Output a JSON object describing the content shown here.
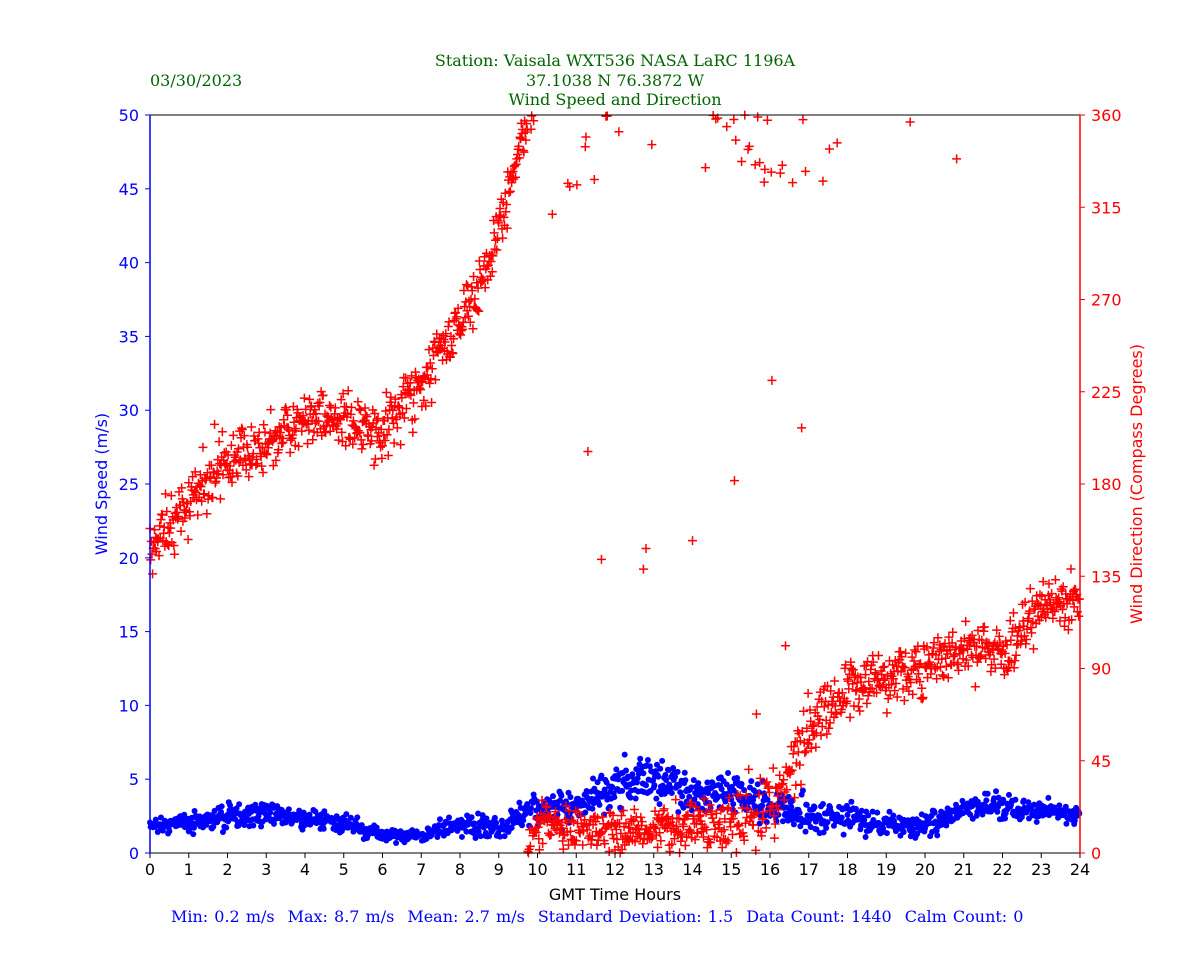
{
  "header": {
    "station": "Station:  Vaisala WXT536  NASA LaRC 1196A",
    "coords": "37.1038 N 76.3872 W",
    "subtitle": "Wind Speed and Direction",
    "date": "03/30/2023"
  },
  "stats": [
    "Min: 0.2 m/s",
    "Max: 8.7 m/s",
    "Mean: 2.7 m/s",
    "Standard Deviation: 1.5",
    "Data Count: 1440",
    "Calm Count:  0"
  ],
  "chart_data": {
    "type": "scatter",
    "title": "Wind Speed and Direction",
    "xlabel": "GMT Time Hours",
    "ylabel": "Wind Speed (m/s)",
    "y2label": "Wind Direction (Compass Degrees)",
    "xlim": [
      0,
      24
    ],
    "ylim": [
      0,
      50
    ],
    "y2lim": [
      0,
      360
    ],
    "xticks": [
      "0",
      "1",
      "2",
      "3",
      "4",
      "5",
      "6",
      "7",
      "8",
      "9",
      "10",
      "11",
      "12",
      "13",
      "14",
      "15",
      "16",
      "17",
      "18",
      "19",
      "20",
      "21",
      "22",
      "23",
      "24"
    ],
    "yticks": [
      "0",
      "5",
      "10",
      "15",
      "20",
      "25",
      "30",
      "35",
      "40",
      "45",
      "50"
    ],
    "y2ticks": [
      "0",
      "45",
      "90",
      "135",
      "180",
      "225",
      "270",
      "315",
      "360"
    ],
    "grid": false,
    "sample_count": 1440,
    "sample_interval_minutes": 1,
    "series": [
      {
        "name": "Wind Speed (m/s)",
        "marker": "dot",
        "color": "#0000ff",
        "axis": "left",
        "hourly_mean": [
          1.8,
          2.1,
          2.5,
          2.6,
          2.3,
          2.0,
          1.2,
          1.2,
          2.0,
          1.6,
          3.0,
          3.2,
          4.5,
          5.3,
          3.8,
          4.3,
          3.0,
          2.4,
          2.6,
          2.0,
          1.9,
          3.0,
          3.2,
          2.9,
          2.5
        ],
        "hourly_sd": [
          0.4,
          0.6,
          0.8,
          0.8,
          0.6,
          0.6,
          0.4,
          0.5,
          0.6,
          0.8,
          0.9,
          1.1,
          1.4,
          1.3,
          1.5,
          1.4,
          1.2,
          1.0,
          1.0,
          0.8,
          0.8,
          0.8,
          0.8,
          0.7,
          0.5
        ]
      },
      {
        "name": "Wind Direction (deg)",
        "marker": "plus",
        "color": "#ff0000",
        "axis": "right",
        "hourly_mean": [
          148,
          172,
          192,
          198,
          212,
          212,
          205,
          230,
          258,
          305,
          375,
          372,
          370,
          372,
          375,
          372,
          380,
          420,
          440,
          445,
          450,
          462,
          458,
          480,
          482
        ],
        "hourly_sd": [
          10,
          14,
          14,
          12,
          10,
          10,
          14,
          14,
          14,
          12,
          9,
          9,
          9,
          9,
          12,
          12,
          14,
          12,
          12,
          12,
          12,
          12,
          12,
          10,
          10
        ],
        "outlier_fraction": [
          0,
          0,
          0,
          0,
          0,
          0,
          0,
          0,
          0,
          0,
          0.08,
          0.08,
          0.06,
          0.08,
          0.12,
          0.12,
          0.12,
          0.1,
          0.04,
          0.04,
          0.02,
          0,
          0,
          0,
          0
        ]
      }
    ]
  }
}
